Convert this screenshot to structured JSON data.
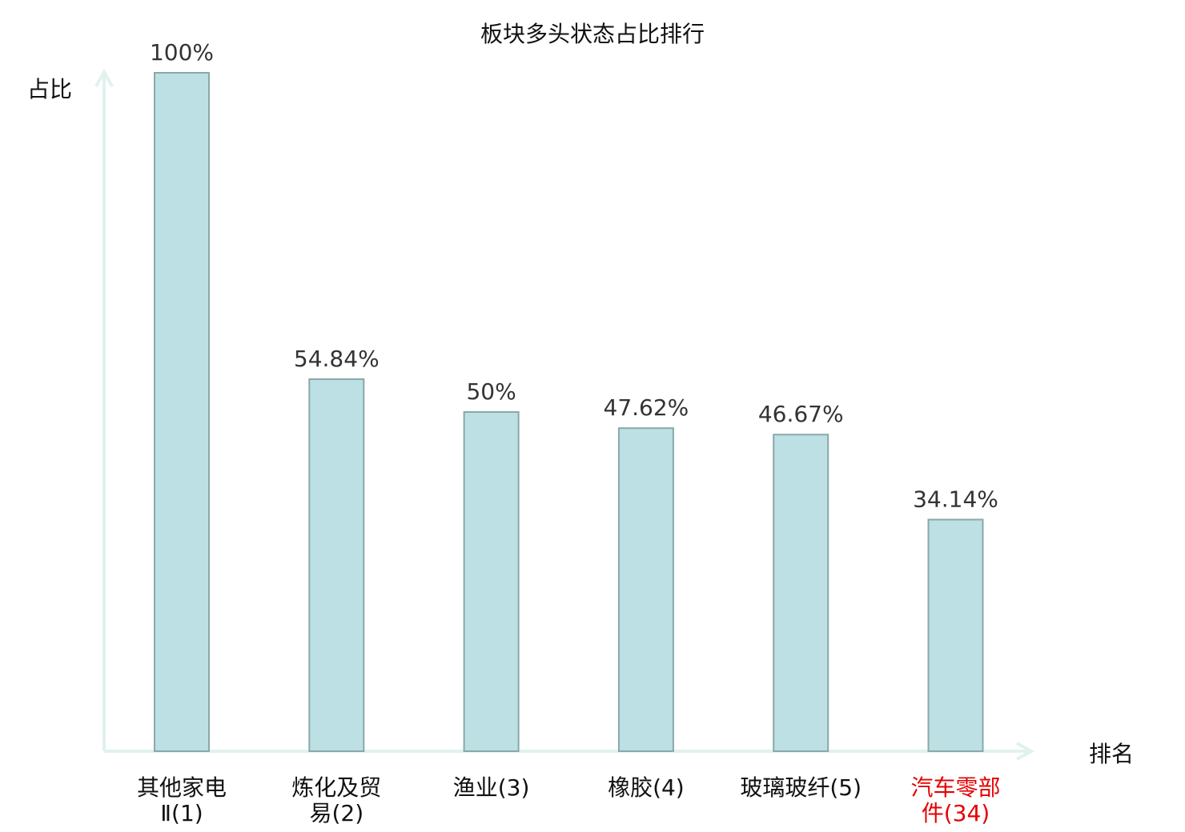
{
  "chart_data": {
    "type": "bar",
    "title": "板块多头状态占比排行",
    "ylabel": "占比",
    "xlabel": "排名",
    "ylim": [
      0,
      100
    ],
    "grid": false,
    "categories": [
      [
        "其他家电",
        "Ⅱ(1)"
      ],
      [
        "炼化及贸",
        "易(2)"
      ],
      [
        "渔业(3)"
      ],
      [
        "橡胶(4)"
      ],
      [
        "玻璃玻纤(5)"
      ],
      [
        "汽车零部",
        "件(34)"
      ]
    ],
    "values": [
      100,
      54.84,
      50,
      47.62,
      46.67,
      34.14
    ],
    "value_labels": [
      "100%",
      "54.84%",
      "50%",
      "47.62%",
      "46.67%",
      "34.14%"
    ],
    "highlight_index": 5,
    "colors": {
      "bar_fill": "#bce0e3",
      "bar_stroke": "#8aa8a8",
      "axis": "#e0f2ef",
      "highlight_text": "#e60000",
      "text": "#111111"
    }
  }
}
